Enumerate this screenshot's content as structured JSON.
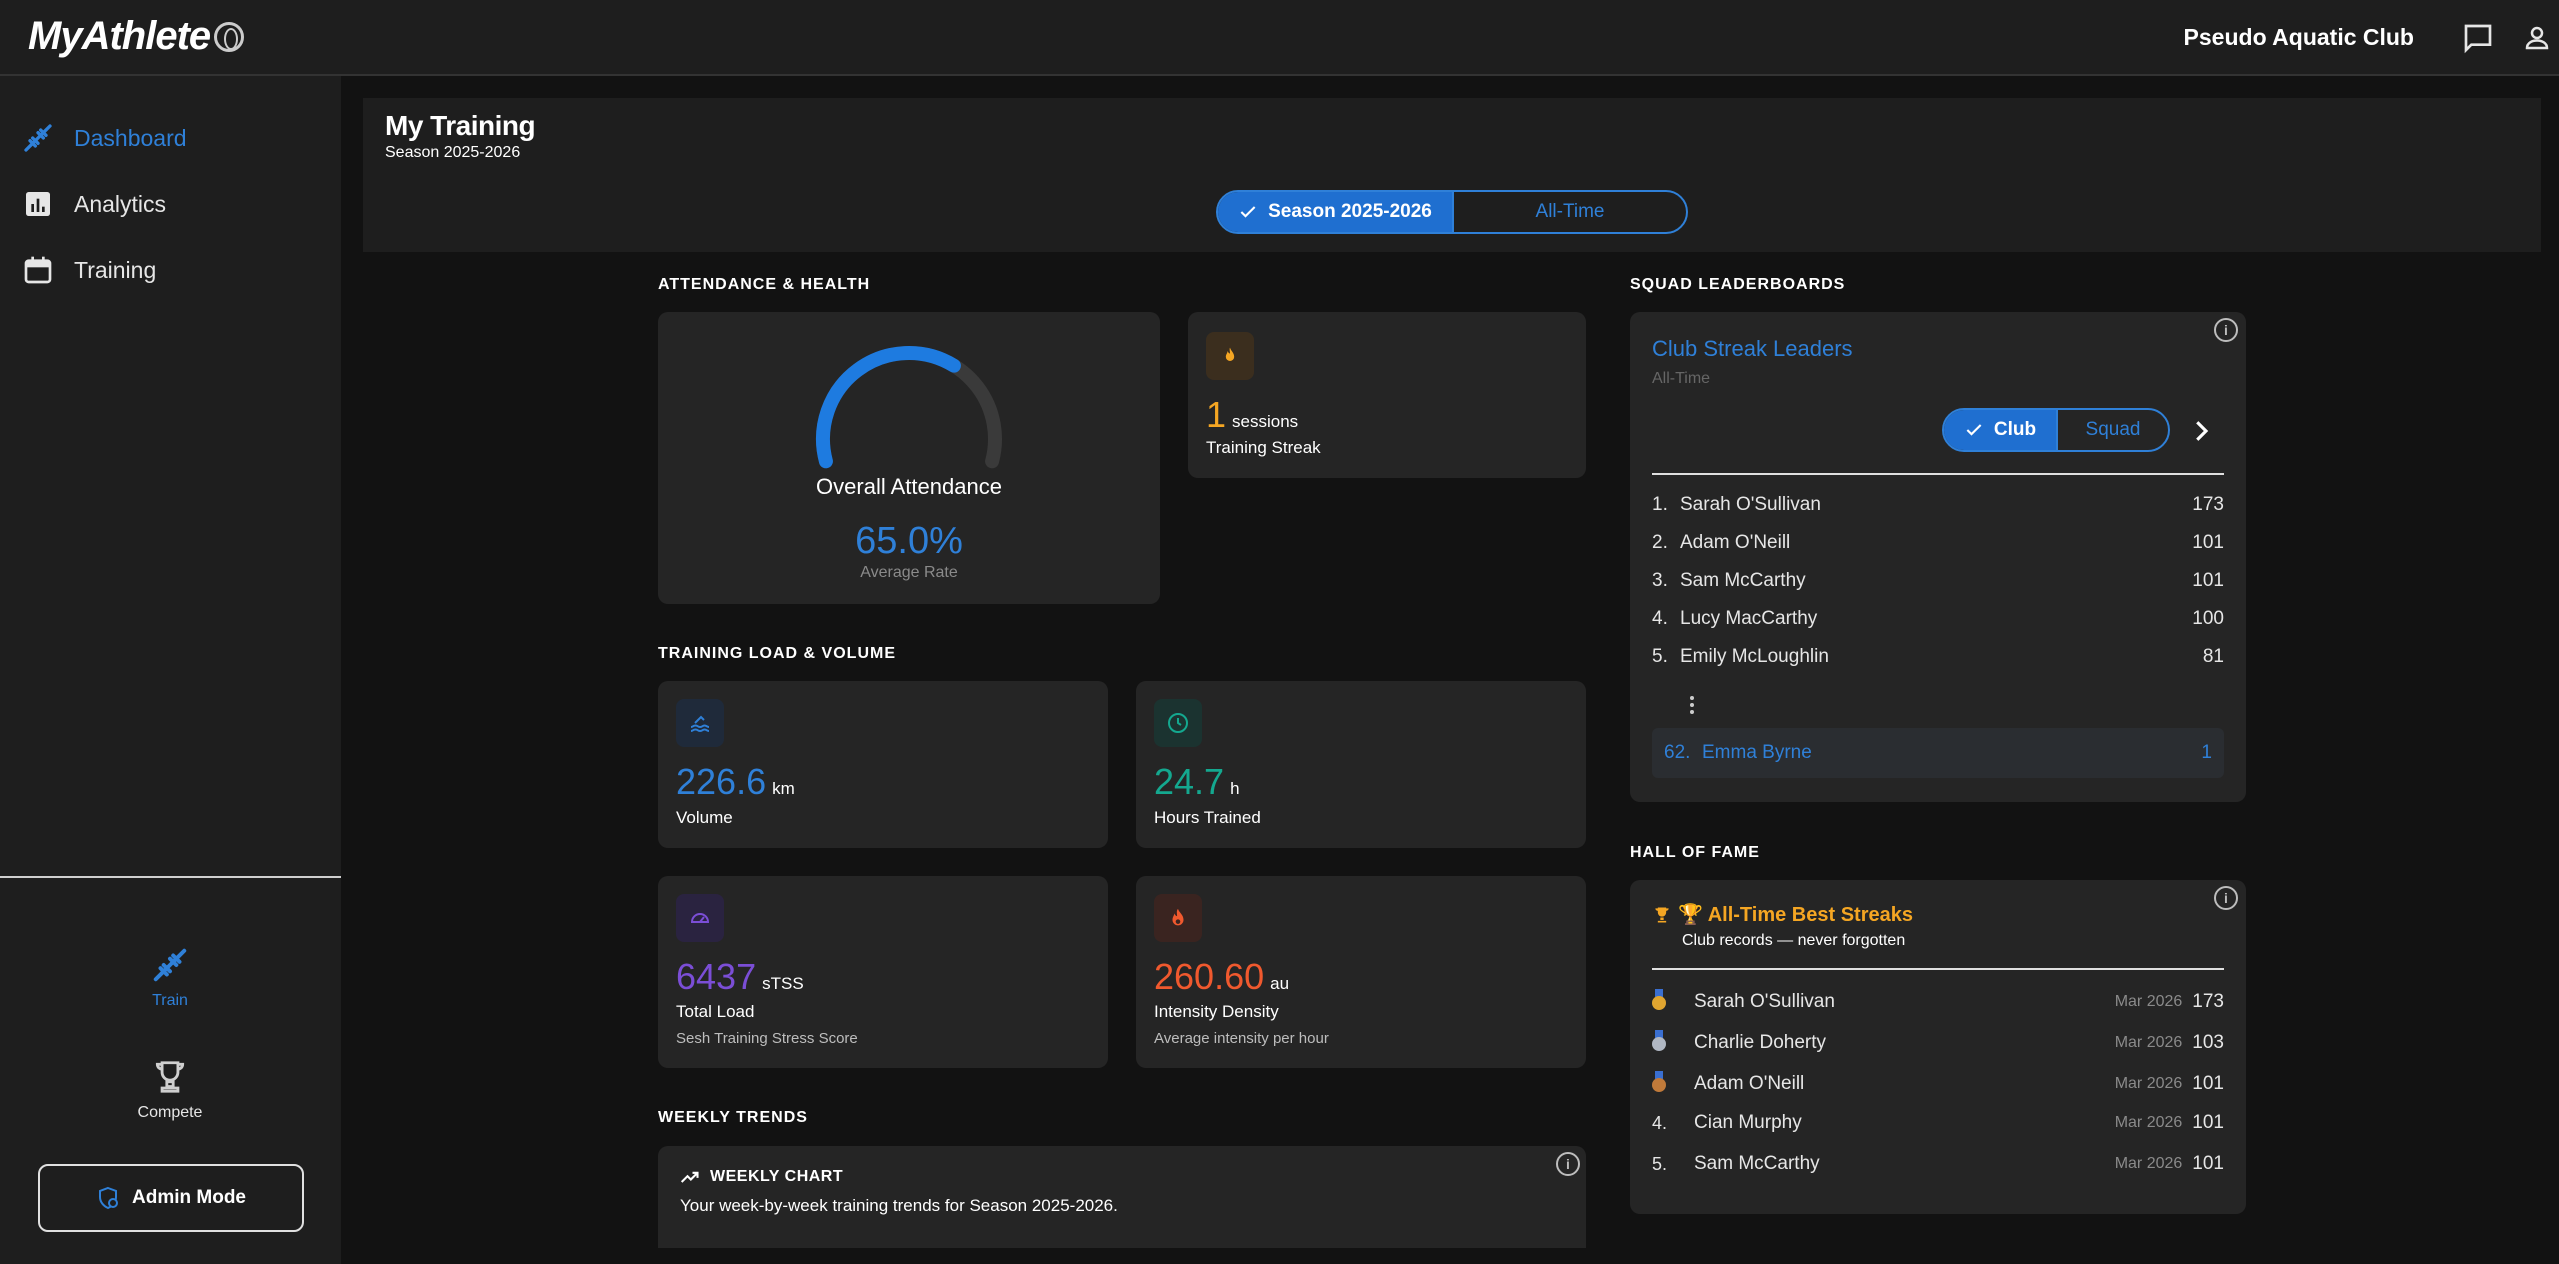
{
  "app": {
    "logo_text": "MyAthlete",
    "club_name": "Pseudo Aquatic Club"
  },
  "sidebar": {
    "items": [
      {
        "label": "Dashboard",
        "icon": "dumbbell-icon",
        "active": true
      },
      {
        "label": "Analytics",
        "icon": "bar-chart-icon",
        "active": false
      },
      {
        "label": "Training",
        "icon": "calendar-icon",
        "active": false
      }
    ],
    "bottom": [
      {
        "label": "Train",
        "icon": "dumbbell-icon",
        "active": true
      },
      {
        "label": "Compete",
        "icon": "trophy-icon",
        "active": false
      }
    ],
    "admin_label": "Admin Mode"
  },
  "header": {
    "title": "My Training",
    "subtitle": "Season 2025-2026",
    "toggle": {
      "selected": "Season 2025-2026",
      "other": "All-Time"
    }
  },
  "sections": {
    "attendance": "ATTENDANCE & HEALTH",
    "load": "TRAINING LOAD & VOLUME",
    "trends": "WEEKLY TRENDS",
    "leaderboards": "SQUAD LEADERBOARDS",
    "hall_of_fame": "HALL OF FAME"
  },
  "attendance": {
    "title": "Overall Attendance",
    "value": "65.0%",
    "fraction": 0.65,
    "sublabel": "Average Rate",
    "color": "#1e7be0"
  },
  "streak": {
    "value": "1",
    "unit": "sessions",
    "label": "Training Streak",
    "color": "#f5a623"
  },
  "metrics": [
    {
      "value": "226.6",
      "unit": "km",
      "label": "Volume",
      "sub": "",
      "color": "#2f80d8",
      "icon": "swim-icon"
    },
    {
      "value": "24.7",
      "unit": "h",
      "label": "Hours Trained",
      "sub": "",
      "color": "#14a88f",
      "icon": "clock-icon"
    },
    {
      "value": "6437",
      "unit": "sTSS",
      "label": "Total Load",
      "sub": "Sesh Training Stress Score",
      "color": "#7b4ed6",
      "icon": "speedometer-icon"
    },
    {
      "value": "260.60",
      "unit": "au",
      "label": "Intensity Density",
      "sub": "Average intensity per hour",
      "color": "#f0592e",
      "icon": "flame-icon"
    }
  ],
  "weekly": {
    "title": "WEEKLY CHART",
    "description": "Your week-by-week training trends for Season 2025-2026."
  },
  "leaderboard": {
    "title": "Club Streak Leaders",
    "subtitle": "All-Time",
    "toggle": {
      "selected": "Club",
      "other": "Squad"
    },
    "rows": [
      {
        "rank": "1.",
        "name": "Sarah O'Sullivan",
        "value": "173"
      },
      {
        "rank": "2.",
        "name": "Adam O'Neill",
        "value": "101"
      },
      {
        "rank": "3.",
        "name": "Sam McCarthy",
        "value": "101"
      },
      {
        "rank": "4.",
        "name": "Lucy MacCarthy",
        "value": "100"
      },
      {
        "rank": "5.",
        "name": "Emily McLoughlin",
        "value": "81"
      }
    ],
    "me": {
      "rank": "62.",
      "name": "Emma Byrne",
      "value": "1"
    }
  },
  "hall_of_fame": {
    "title": "🏆 All-Time Best Streaks",
    "subtitle": "Club records — never forgotten",
    "rows": [
      {
        "rank": "",
        "medal": "#e0a530",
        "name": "Sarah O'Sullivan",
        "date": "Mar 2026",
        "value": "173"
      },
      {
        "rank": "",
        "medal": "#b0b7c3",
        "name": "Charlie Doherty",
        "date": "Mar 2026",
        "value": "103"
      },
      {
        "rank": "",
        "medal": "#c07a3a",
        "name": "Adam O'Neill",
        "date": "Mar 2026",
        "value": "101"
      },
      {
        "rank": "4.",
        "medal": "",
        "name": "Cian Murphy",
        "date": "Mar 2026",
        "value": "101"
      },
      {
        "rank": "5.",
        "medal": "",
        "name": "Sam McCarthy",
        "date": "Mar 2026",
        "value": "101"
      }
    ]
  }
}
